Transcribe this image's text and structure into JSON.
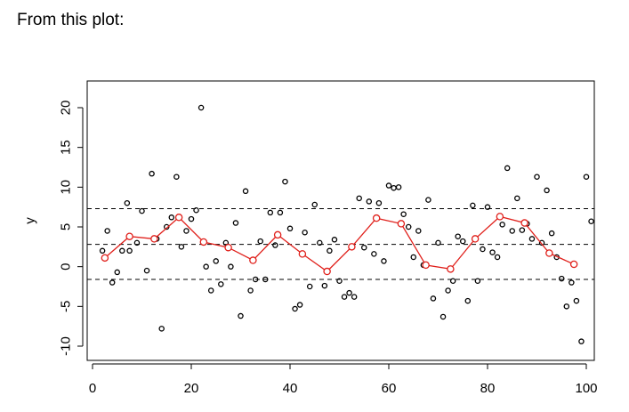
{
  "caption": "From this plot:",
  "chart_data": {
    "type": "scatter",
    "title": "",
    "xlabel": "",
    "ylabel": "y",
    "xlim": [
      -1,
      101
    ],
    "ylim": [
      -11.5,
      23.5
    ],
    "xticks": [
      0,
      20,
      40,
      60,
      80,
      100
    ],
    "yticks": [
      -10,
      -5,
      0,
      5,
      10,
      15,
      20
    ],
    "grid": false,
    "legend": "none",
    "hlines": [
      {
        "y": 7.3,
        "style": "dashed",
        "color": "#000000"
      },
      {
        "y": 2.8,
        "style": "dashed",
        "color": "#000000"
      },
      {
        "y": -1.6,
        "style": "dashed",
        "color": "#000000"
      }
    ],
    "series": [
      {
        "kind": "points",
        "color": "#000000",
        "points": [
          [
            2,
            2
          ],
          [
            3,
            4.5
          ],
          [
            4,
            -2
          ],
          [
            5,
            -0.7
          ],
          [
            6,
            2
          ],
          [
            7,
            8
          ],
          [
            7.5,
            2
          ],
          [
            9,
            3
          ],
          [
            10,
            7
          ],
          [
            11,
            -0.5
          ],
          [
            12,
            11.7
          ],
          [
            13,
            3.5
          ],
          [
            14,
            -7.8
          ],
          [
            15,
            5
          ],
          [
            16,
            6.2
          ],
          [
            17,
            11.3
          ],
          [
            18,
            2.5
          ],
          [
            19,
            4.5
          ],
          [
            20,
            6
          ],
          [
            21,
            7.1
          ],
          [
            22,
            20
          ],
          [
            23,
            0
          ],
          [
            24,
            -3
          ],
          [
            25,
            0.7
          ],
          [
            26,
            -2.2
          ],
          [
            27,
            3
          ],
          [
            28,
            0
          ],
          [
            29,
            5.5
          ],
          [
            30,
            -6.2
          ],
          [
            31,
            9.5
          ],
          [
            32,
            -3
          ],
          [
            33,
            -1.6
          ],
          [
            34,
            3.2
          ],
          [
            35,
            -1.6
          ],
          [
            36,
            6.8
          ],
          [
            37,
            2.7
          ],
          [
            38,
            6.8
          ],
          [
            39,
            10.7
          ],
          [
            40,
            4.8
          ],
          [
            41,
            -5.3
          ],
          [
            42,
            -4.8
          ],
          [
            43,
            4.3
          ],
          [
            44,
            -2.5
          ],
          [
            45,
            7.8
          ],
          [
            46,
            3
          ],
          [
            47,
            -2.4
          ],
          [
            48,
            2
          ],
          [
            49,
            3.4
          ],
          [
            50,
            -1.8
          ],
          [
            51,
            -3.8
          ],
          [
            52,
            -3.3
          ],
          [
            53,
            -3.8
          ],
          [
            54,
            8.6
          ],
          [
            55,
            2.4
          ],
          [
            56,
            8.2
          ],
          [
            57,
            1.6
          ],
          [
            58,
            8
          ],
          [
            59,
            0.7
          ],
          [
            60,
            10.2
          ],
          [
            61,
            9.9
          ],
          [
            62,
            10
          ],
          [
            63,
            6.6
          ],
          [
            64,
            5
          ],
          [
            65,
            1.2
          ],
          [
            66,
            4.5
          ],
          [
            67,
            0.2
          ],
          [
            68,
            8.4
          ],
          [
            69,
            -4
          ],
          [
            70,
            3
          ],
          [
            71,
            -6.3
          ],
          [
            72,
            -3
          ],
          [
            73,
            -1.8
          ],
          [
            74,
            3.8
          ],
          [
            75,
            3.2
          ],
          [
            76,
            -4.3
          ],
          [
            77,
            7.7
          ],
          [
            78,
            -1.8
          ],
          [
            79,
            2.2
          ],
          [
            80,
            7.5
          ],
          [
            81,
            1.8
          ],
          [
            82,
            1.2
          ],
          [
            83,
            5.3
          ],
          [
            84,
            12.4
          ],
          [
            85,
            4.5
          ],
          [
            86,
            8.6
          ],
          [
            87,
            4.6
          ],
          [
            88,
            5.4
          ],
          [
            89,
            3.5
          ],
          [
            90,
            11.3
          ],
          [
            91,
            3
          ],
          [
            92,
            9.6
          ],
          [
            93,
            4.2
          ],
          [
            94,
            1.2
          ],
          [
            95,
            -1.5
          ],
          [
            96,
            -5
          ],
          [
            97,
            -2
          ],
          [
            98,
            -4.3
          ],
          [
            99,
            -9.4
          ],
          [
            100,
            11.3
          ],
          [
            101,
            5.7
          ]
        ]
      },
      {
        "kind": "line+points",
        "color": "#e0201b",
        "points": [
          [
            2.5,
            1.1
          ],
          [
            7.5,
            3.8
          ],
          [
            12.5,
            3.5
          ],
          [
            17.5,
            6.2
          ],
          [
            22.5,
            3.1
          ],
          [
            27.5,
            2.4
          ],
          [
            32.5,
            0.8
          ],
          [
            37.5,
            4
          ],
          [
            42.5,
            1.6
          ],
          [
            47.5,
            -0.6
          ],
          [
            52.5,
            2.5
          ],
          [
            57.5,
            6.1
          ],
          [
            62.5,
            5.4
          ],
          [
            67.5,
            0.2
          ],
          [
            72.5,
            -0.3
          ],
          [
            77.5,
            3.5
          ],
          [
            82.5,
            6.3
          ],
          [
            87.5,
            5.5
          ],
          [
            92.5,
            1.7
          ],
          [
            97.5,
            0.3
          ]
        ]
      }
    ]
  }
}
